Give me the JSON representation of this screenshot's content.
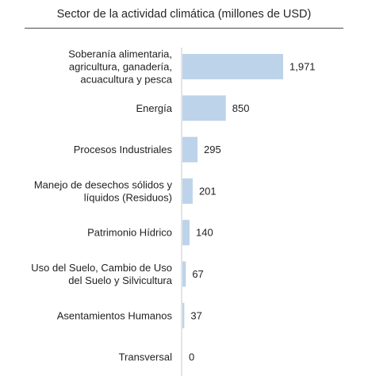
{
  "chart_data": {
    "type": "bar",
    "orientation": "horizontal",
    "title": "Sector de la actividad climática (millones de USD)",
    "categories": [
      [
        "Soberanía alimentaria,",
        "agricultura, ganadería,",
        "acuacultura y pesca"
      ],
      [
        "Energía"
      ],
      [
        "Procesos Industriales"
      ],
      [
        "Manejo de desechos sólidos y",
        "líquidos (Residuos)"
      ],
      [
        "Patrimonio Hídrico"
      ],
      [
        "Uso del Suelo, Cambio de Uso",
        "del Suelo y Silvicultura"
      ],
      [
        "Asentamientos Humanos"
      ],
      [
        "Transversal"
      ]
    ],
    "values": [
      1971,
      850,
      295,
      201,
      140,
      67,
      37,
      0
    ],
    "value_labels": [
      "1,971",
      "850",
      "295",
      "201",
      "140",
      "67",
      "37",
      "0"
    ],
    "xlim": [
      0,
      1971
    ],
    "grid": false,
    "legend": "none",
    "bar_color": "#bdd3ea",
    "axis_color": "#c8c8c8"
  }
}
